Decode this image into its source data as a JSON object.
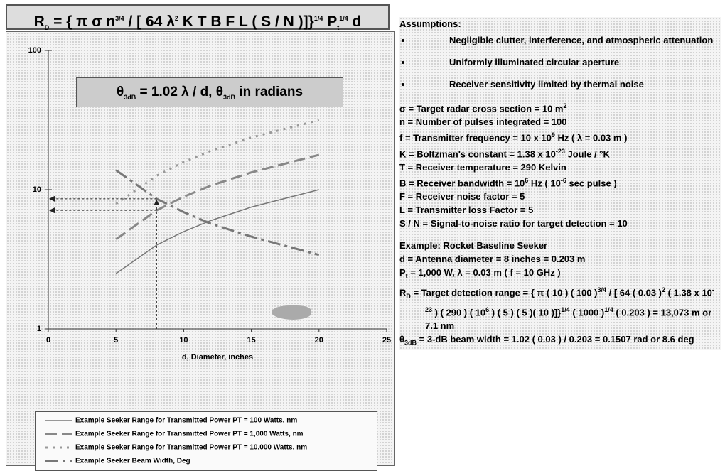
{
  "chart_data": {
    "type": "line",
    "title_parts": [
      "R",
      {
        "sub": "D"
      },
      " = { π σ n",
      {
        "sup": "3/4"
      },
      " / [ 64 λ",
      {
        "sup": "2"
      },
      " K T B F L ( S / N )]}",
      {
        "sup": "1/4"
      },
      " P",
      {
        "sub": "t"
      },
      {
        "sup": "1/4"
      },
      " d"
    ],
    "annotation_parts": [
      "θ",
      {
        "sub": "3dB"
      },
      " = 1.02 λ / d, θ",
      {
        "sub": "3dB"
      },
      " in radians"
    ],
    "x_label": "d, Diameter, inches",
    "x": [
      5,
      8,
      10,
      12,
      15,
      20
    ],
    "series": [
      {
        "name": "Example Seeker Range for Transmitted Power PT = 100 Watts, nm",
        "color": "#777",
        "dash": "solid",
        "values": [
          2.5,
          4.0,
          5.0,
          6.0,
          7.5,
          10.0
        ]
      },
      {
        "name": "Example Seeker Range for Transmitted Power PT = 1,000 Watts, nm",
        "color": "#888",
        "dash": "dash",
        "values": [
          4.4,
          7.1,
          8.9,
          10.7,
          13.3,
          17.8
        ]
      },
      {
        "name": "Example Seeker Range for Transmitted Power PT = 10,000 Watts, nm",
        "color": "#999",
        "dash": "dot",
        "values": [
          7.9,
          12.6,
          15.8,
          19.0,
          23.7,
          31.6
        ]
      },
      {
        "name": "Example Seeker Beam Width, Deg",
        "color": "#777",
        "dash": "dashdot",
        "values": [
          13.8,
          8.6,
          6.9,
          5.7,
          4.6,
          3.4
        ]
      }
    ],
    "xlim": [
      0,
      25
    ],
    "xticks": [
      0,
      5,
      10,
      15,
      20,
      25
    ],
    "ylim": [
      1,
      100
    ],
    "yticks": [
      1,
      10,
      100
    ],
    "ylog": true
  },
  "panel": {
    "heading": "Assumptions:",
    "bullets": [
      "Negligible clutter, interference, and atmospheric attenuation",
      "Uniformly illuminated circular aperture",
      "Receiver sensitivity limited by thermal noise"
    ],
    "definitions": [
      [
        "σ = Target radar cross section = 10 m",
        {
          "sup": "2"
        }
      ],
      [
        "n = Number of pulses integrated = 100"
      ],
      [
        "f = Transmitter frequency = 10 x 10",
        {
          "sup": "9"
        },
        " Hz ( λ = 0.03 m )"
      ],
      [
        "K = Boltzman's constant = 1.38 x 10",
        {
          "sup": "-23"
        },
        " Joule / °K"
      ],
      [
        "T = Receiver temperature = 290 Kelvin"
      ],
      [
        "B = Receiver bandwidth = 10",
        {
          "sup": "6"
        },
        " Hz ( 10",
        {
          "sup": "-6"
        },
        " sec pulse )"
      ],
      [
        "F = Receiver noise factor = 5"
      ],
      [
        "L = Transmitter loss Factor = 5"
      ],
      [
        "S / N = Signal-to-noise ratio for target detection = 10"
      ]
    ],
    "example": [
      [
        "Example: Rocket Baseline Seeker"
      ],
      [
        "d = Antenna diameter = 8 inches = 0.203 m"
      ],
      [
        "P",
        {
          "sub": "t"
        },
        " = 1,000 W, λ = 0.03 m ( f = 10 GHz )"
      ],
      [
        "R",
        {
          "sub": "D"
        },
        " =  Target detection range = { π ( 10 ) ( 100 )",
        {
          "sup": "3/4"
        },
        " / [ 64 ( 0.03 )",
        {
          "sup": "2"
        },
        " ( 1.38 x 10",
        {
          "sup": "-23"
        },
        " ) ( 290 ) ( 10",
        {
          "sup": "6"
        },
        " ) ( 5 ) ( 5 )( 10 )]}",
        {
          "sup": "1/4"
        },
        " ( 1000 )",
        {
          "sup": "1/4"
        },
        " ( 0.203 ) =  13,073 m or 7.1 nm"
      ],
      [
        "θ",
        {
          "sub": "3dB"
        },
        " = 3-dB beam width = 1.02 ( 0.03 ) / 0.203 = 0.1507 rad or 8.6 deg"
      ]
    ]
  }
}
